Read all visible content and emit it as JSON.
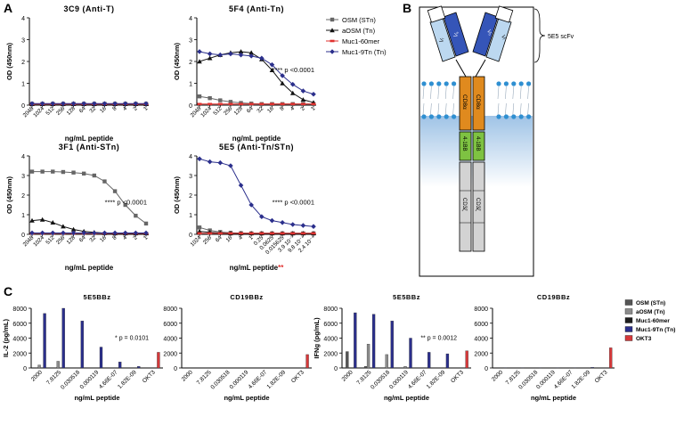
{
  "panel_labels": [
    "A",
    "B",
    "C"
  ],
  "colors": {
    "OSM (STn)": "#666666",
    "aOSM (Tn)": "#111111",
    "Muc1-60mer": "#e0312f",
    "Muc1-9Tn (Tn)": "#2b2f8c",
    "OKT3": "#d6383a"
  },
  "diagram": {
    "scfv_label": "5E5 scFv",
    "vl": "Vₗ",
    "vh": "Vₕ",
    "cd8a": "CD8α",
    "bb": "4-1BB",
    "cd3z": "CD3ζ"
  },
  "chart_data": [
    {
      "type": "line",
      "title": "3C9 (Anti-T)",
      "xlabel": "ng/mL  peptide",
      "ylabel": "OD (450nm)",
      "ylim": [
        0,
        4
      ],
      "yticks": [
        "0",
        "1",
        "2",
        "3",
        "4"
      ],
      "categories": [
        "2048",
        "1024",
        "512",
        "256",
        "128",
        "64",
        "32",
        "16",
        "8",
        "4",
        "2",
        "1"
      ],
      "annotation": "",
      "series": [
        {
          "name": "OSM (STn)",
          "values": [
            0.06,
            0.06,
            0.06,
            0.06,
            0.06,
            0.06,
            0.06,
            0.06,
            0.06,
            0.06,
            0.06,
            0.06
          ]
        },
        {
          "name": "aOSM (Tn)",
          "values": [
            0.05,
            0.05,
            0.05,
            0.05,
            0.05,
            0.05,
            0.05,
            0.05,
            0.05,
            0.05,
            0.05,
            0.05
          ]
        },
        {
          "name": "Muc1-60mer",
          "values": [
            0.05,
            0.05,
            0.05,
            0.05,
            0.05,
            0.05,
            0.05,
            0.05,
            0.05,
            0.05,
            0.05,
            0.05
          ]
        },
        {
          "name": "Muc1-9Tn (Tn)",
          "values": [
            0.07,
            0.07,
            0.07,
            0.07,
            0.07,
            0.07,
            0.07,
            0.07,
            0.07,
            0.07,
            0.07,
            0.07
          ]
        }
      ]
    },
    {
      "type": "line",
      "title": "5F4 (Anti-Tn)",
      "xlabel": "ng/mL  peptide",
      "ylabel": "OD (450nm)",
      "ylim": [
        0,
        4
      ],
      "yticks": [
        "0",
        "1",
        "2",
        "3",
        "4"
      ],
      "categories": [
        "2048",
        "1024",
        "512",
        "256",
        "128",
        "64",
        "32",
        "16",
        "8",
        "4",
        "2",
        "1"
      ],
      "annotation": "**** p <0.0001",
      "series": [
        {
          "name": "OSM (STn)",
          "values": [
            0.4,
            0.32,
            0.22,
            0.15,
            0.1,
            0.07,
            0.05,
            0.05,
            0.05,
            0.05,
            0.05,
            0.05
          ]
        },
        {
          "name": "aOSM (Tn)",
          "values": [
            2.0,
            2.15,
            2.3,
            2.4,
            2.45,
            2.4,
            2.1,
            1.6,
            1.0,
            0.55,
            0.25,
            0.12
          ]
        },
        {
          "name": "Muc1-60mer",
          "values": [
            0.05,
            0.05,
            0.05,
            0.05,
            0.05,
            0.05,
            0.05,
            0.05,
            0.05,
            0.05,
            0.05,
            0.05
          ]
        },
        {
          "name": "Muc1-9Tn (Tn)",
          "values": [
            2.45,
            2.35,
            2.3,
            2.35,
            2.3,
            2.25,
            2.15,
            1.85,
            1.35,
            0.95,
            0.65,
            0.5
          ]
        }
      ]
    },
    {
      "type": "line",
      "title": "3F1 (Anti-STn)",
      "xlabel": "ng/mL  peptide",
      "ylabel": "OD (450nm)",
      "ylim": [
        0,
        4
      ],
      "yticks": [
        "0",
        "1",
        "2",
        "3",
        "4"
      ],
      "categories": [
        "2048",
        "1024",
        "512",
        "256",
        "128",
        "64",
        "32",
        "16",
        "8",
        "4",
        "2",
        "1"
      ],
      "annotation": "**** p <0.0001",
      "series": [
        {
          "name": "OSM (STn)",
          "values": [
            3.2,
            3.2,
            3.2,
            3.18,
            3.15,
            3.1,
            3.0,
            2.7,
            2.2,
            1.5,
            0.95,
            0.55
          ]
        },
        {
          "name": "aOSM (Tn)",
          "values": [
            0.7,
            0.75,
            0.6,
            0.4,
            0.25,
            0.15,
            0.1,
            0.06,
            0.05,
            0.05,
            0.05,
            0.05
          ]
        },
        {
          "name": "Muc1-60mer",
          "values": [
            0.05,
            0.05,
            0.05,
            0.05,
            0.05,
            0.05,
            0.05,
            0.05,
            0.05,
            0.05,
            0.05,
            0.05
          ]
        },
        {
          "name": "Muc1-9Tn (Tn)",
          "values": [
            0.07,
            0.07,
            0.07,
            0.07,
            0.07,
            0.07,
            0.07,
            0.07,
            0.07,
            0.07,
            0.07,
            0.07
          ]
        }
      ]
    },
    {
      "type": "line",
      "title": "5E5 (Anti-Tn/STn)",
      "xlabel": "ng/mL  peptide",
      "xlabel_suffix": "**",
      "ylabel": "OD (450nm)",
      "ylim": [
        0,
        4
      ],
      "yticks": [
        "0",
        "1",
        "2",
        "3",
        "4"
      ],
      "categories": [
        "1024",
        "256",
        "64",
        "16",
        "4",
        "1",
        "0.25",
        "0.0625",
        "0.015625",
        "3.9 10⁻³",
        "9.8 10⁻⁴",
        "2.4 10⁻⁴"
      ],
      "annotation": "**** p <0.0001",
      "series": [
        {
          "name": "OSM (STn)",
          "values": [
            0.35,
            0.2,
            0.12,
            0.08,
            0.06,
            0.05,
            0.05,
            0.05,
            0.05,
            0.05,
            0.05,
            0.05
          ]
        },
        {
          "name": "aOSM (Tn)",
          "values": [
            0.15,
            0.1,
            0.07,
            0.05,
            0.05,
            0.05,
            0.05,
            0.05,
            0.05,
            0.05,
            0.05,
            0.05
          ]
        },
        {
          "name": "Muc1-60mer",
          "values": [
            0.05,
            0.05,
            0.05,
            0.05,
            0.05,
            0.05,
            0.05,
            0.05,
            0.05,
            0.05,
            0.05,
            0.05
          ]
        },
        {
          "name": "Muc1-9Tn (Tn)",
          "values": [
            3.85,
            3.7,
            3.65,
            3.5,
            2.5,
            1.5,
            0.9,
            0.7,
            0.6,
            0.5,
            0.45,
            0.4
          ]
        }
      ]
    },
    {
      "type": "bar",
      "title": "5E5BBz",
      "xlabel": "ng/mL  peptide",
      "ylabel": "IL-2 (pg/mL)",
      "ylim": [
        0,
        8000
      ],
      "yticks": [
        "0",
        "2000",
        "4000",
        "6000",
        "8000"
      ],
      "categories": [
        "2000",
        "7.8125",
        "0.030518",
        "0.000119",
        "4.66E-07",
        "1.82E-09",
        "OKT3"
      ],
      "annotation": "* p = 0.0101",
      "series": [
        {
          "name": "OSM (STn)",
          "values": [
            0,
            0,
            0,
            0,
            0,
            0,
            0
          ]
        },
        {
          "name": "aOSM (Tn)",
          "values": [
            400,
            900,
            0,
            0,
            0,
            0,
            0
          ]
        },
        {
          "name": "Muc1-60mer",
          "values": [
            0,
            0,
            0,
            0,
            0,
            0,
            0
          ]
        },
        {
          "name": "Muc1-9Tn (Tn)",
          "values": [
            7300,
            8000,
            6300,
            2800,
            800,
            200,
            0
          ]
        },
        {
          "name": "OKT3",
          "values": [
            0,
            0,
            0,
            0,
            0,
            0,
            2100
          ]
        }
      ]
    },
    {
      "type": "bar",
      "title": "CD19BBz",
      "xlabel": "ng/mL  peptide",
      "ylabel": "",
      "ylim": [
        0,
        8000
      ],
      "yticks": [
        "0",
        "2000",
        "4000",
        "6000",
        "8000"
      ],
      "categories": [
        "2000",
        "7.8125",
        "0.030518",
        "0.000119",
        "4.66E-07",
        "1.82E-09",
        "OKT3"
      ],
      "annotation": "",
      "series": [
        {
          "name": "OSM (STn)",
          "values": [
            0,
            0,
            0,
            0,
            0,
            0,
            0
          ]
        },
        {
          "name": "aOSM (Tn)",
          "values": [
            0,
            0,
            0,
            0,
            0,
            0,
            0
          ]
        },
        {
          "name": "Muc1-60mer",
          "values": [
            0,
            0,
            0,
            0,
            0,
            0,
            0
          ]
        },
        {
          "name": "Muc1-9Tn (Tn)",
          "values": [
            0,
            0,
            0,
            0,
            0,
            0,
            0
          ]
        },
        {
          "name": "OKT3",
          "values": [
            0,
            0,
            0,
            0,
            0,
            0,
            1800
          ]
        }
      ]
    },
    {
      "type": "bar",
      "title": "5E5BBz",
      "xlabel": "ng/mL  peptide",
      "ylabel": "IFNg (pg/mL)",
      "ylim": [
        0,
        8000
      ],
      "yticks": [
        "0",
        "2000",
        "4000",
        "6000",
        "8000"
      ],
      "categories": [
        "2000",
        "7.8125",
        "0.030518",
        "0.000119",
        "4.66E-07",
        "1.82E-09",
        "OKT3"
      ],
      "annotation": "** p = 0.0012",
      "series": [
        {
          "name": "OSM (STn)",
          "values": [
            2200,
            200,
            0,
            0,
            0,
            0,
            0
          ]
        },
        {
          "name": "aOSM (Tn)",
          "values": [
            0,
            3200,
            1800,
            200,
            0,
            0,
            0
          ]
        },
        {
          "name": "Muc1-60mer",
          "values": [
            0,
            0,
            0,
            0,
            0,
            0,
            0
          ]
        },
        {
          "name": "Muc1-9Tn (Tn)",
          "values": [
            7400,
            7200,
            6300,
            4000,
            2100,
            1900,
            0
          ]
        },
        {
          "name": "OKT3",
          "values": [
            0,
            0,
            0,
            0,
            0,
            0,
            2300
          ]
        }
      ]
    },
    {
      "type": "bar",
      "title": "CD19BBz",
      "xlabel": "ng/mL  peptide",
      "ylabel": "",
      "ylim": [
        0,
        8000
      ],
      "yticks": [
        "0",
        "2000",
        "4000",
        "6000",
        "8000"
      ],
      "categories": [
        "2000",
        "7.8125",
        "0.030518",
        "0.000119",
        "4.66E-07",
        "1.82E-09",
        "OKT3"
      ],
      "annotation": "",
      "series": [
        {
          "name": "OSM (STn)",
          "values": [
            0,
            0,
            0,
            0,
            0,
            0,
            0
          ]
        },
        {
          "name": "aOSM (Tn)",
          "values": [
            0,
            0,
            0,
            0,
            0,
            0,
            0
          ]
        },
        {
          "name": "Muc1-60mer",
          "values": [
            0,
            0,
            0,
            0,
            0,
            0,
            0
          ]
        },
        {
          "name": "Muc1-9Tn (Tn)",
          "values": [
            50,
            50,
            50,
            50,
            50,
            80,
            0
          ]
        },
        {
          "name": "OKT3",
          "values": [
            0,
            0,
            0,
            0,
            0,
            0,
            2700
          ]
        }
      ]
    }
  ],
  "legend_a": [
    "OSM (STn)",
    "aOSM (Tn)",
    "Muc1-60mer",
    "Muc1-9Tn (Tn)"
  ],
  "legend_c": [
    "OSM (STn)",
    "aOSM (Tn)",
    "Muc1-60mer",
    "Muc1-9Tn (Tn)",
    "OKT3"
  ]
}
